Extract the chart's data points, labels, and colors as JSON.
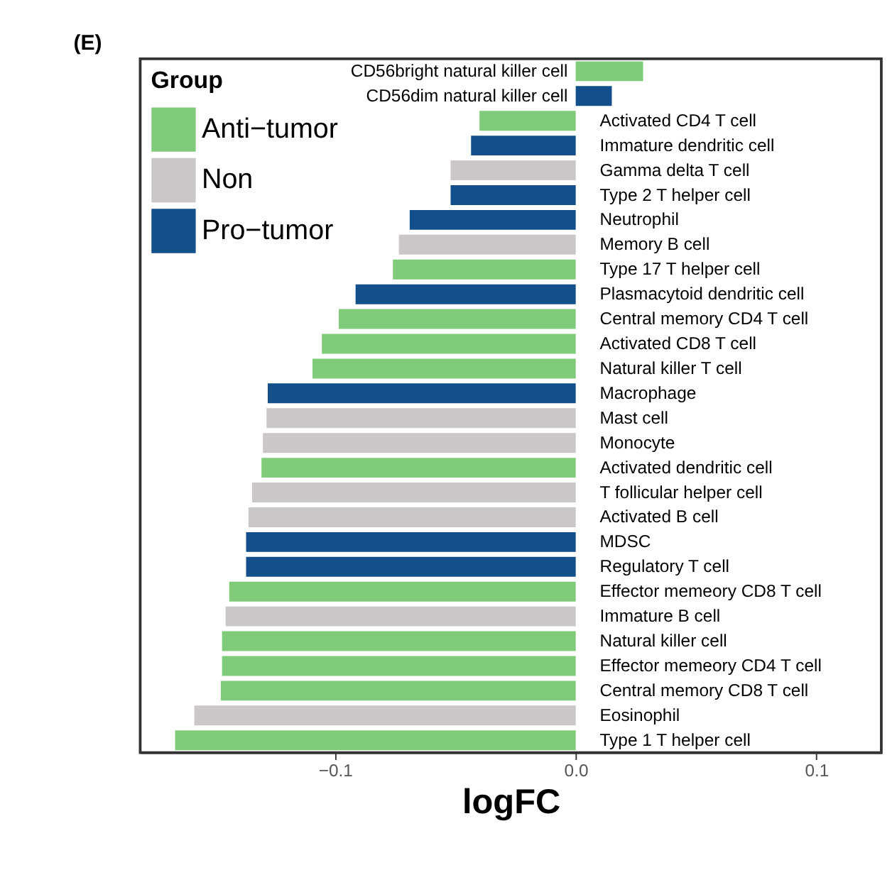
{
  "chart_data": {
    "type": "bar",
    "orientation": "horizontal",
    "title": "(E)",
    "xlabel": "logFC",
    "legend_title": "Group",
    "legend": "top left",
    "grid": false,
    "categories": [
      "CD56bright natural killer cell",
      "CD56dim natural killer cell",
      "Activated CD4 T cell",
      "Immature dendritic cell",
      "Gamma delta T cell",
      "Type 2 T helper cell",
      "Neutrophil",
      "Memory B cell",
      "Type 17 T helper cell",
      "Plasmacytoid dendritic cell",
      "Central memory CD4 T cell",
      "Activated CD8 T cell",
      "Natural killer T cell",
      "Macrophage",
      "Mast cell",
      "Monocyte",
      "Activated dendritic cell",
      "T follicular helper cell",
      "Activated B cell",
      "MDSC",
      "Regulatory T cell",
      "Effector memeory CD8 T cell",
      "Immature  B cell",
      "Natural killer cell",
      "Effector memeory CD4 T cell",
      "Central memory CD8 T cell",
      "Eosinophil",
      "Type 1 T helper cell"
    ],
    "series": [
      {
        "name": "Anti−tumor",
        "color": "#7fcb7a",
        "values": [
          0.028,
          null,
          -0.04,
          null,
          null,
          null,
          null,
          null,
          -0.076,
          null,
          -0.0985,
          -0.1055,
          -0.1094,
          null,
          null,
          null,
          -0.1306,
          null,
          null,
          null,
          null,
          -0.144,
          null,
          -0.147,
          -0.147,
          -0.1475,
          null,
          -0.1665
        ]
      },
      {
        "name": "Non",
        "color": "#cbc7c6",
        "values": [
          null,
          null,
          null,
          null,
          -0.052,
          null,
          null,
          -0.0735,
          null,
          null,
          null,
          null,
          null,
          null,
          -0.1285,
          -0.13,
          null,
          -0.1345,
          -0.136,
          null,
          null,
          null,
          -0.1455,
          null,
          null,
          null,
          -0.1585,
          null
        ]
      },
      {
        "name": "Pro−tumor",
        "color": "#134f8a",
        "values": [
          null,
          0.015,
          null,
          -0.0435,
          null,
          -0.052,
          -0.069,
          null,
          null,
          -0.0915,
          null,
          null,
          null,
          -0.128,
          null,
          null,
          null,
          null,
          null,
          -0.137,
          -0.137,
          null,
          null,
          null,
          null,
          null,
          null,
          null
        ]
      }
    ],
    "xlim": [
      -0.181,
      0.127
    ],
    "xticks": [
      {
        "value": -0.1,
        "label": "−0.1"
      },
      {
        "value": 0.0,
        "label": "0.0"
      },
      {
        "value": 0.1,
        "label": "0.1"
      }
    ]
  }
}
